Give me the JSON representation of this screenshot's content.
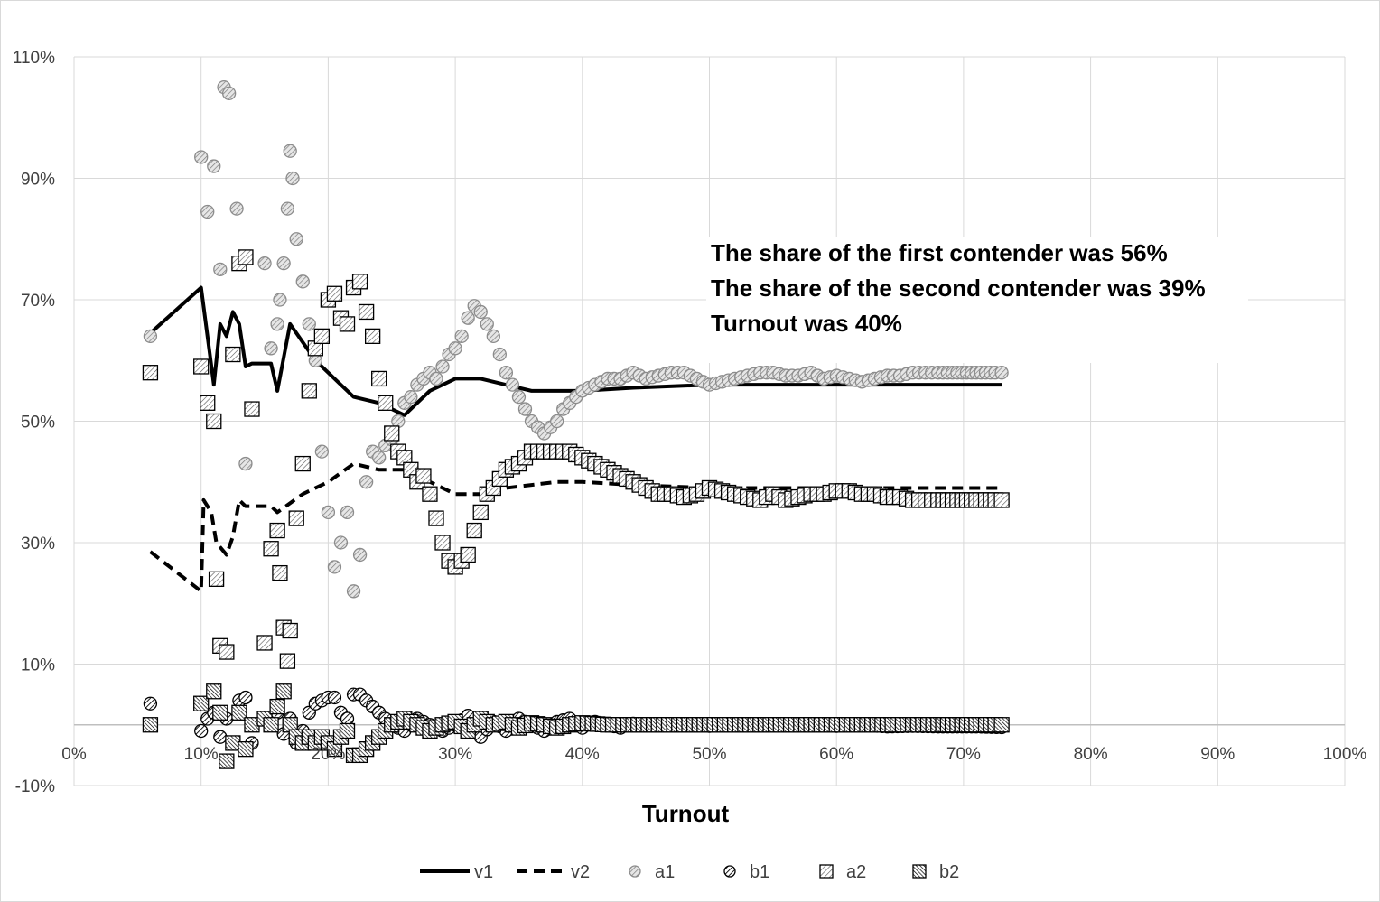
{
  "chart_data": {
    "type": "scatter",
    "title": "",
    "xlabel": "Turnout",
    "ylabel": "",
    "xlim": [
      0,
      100
    ],
    "ylim": [
      -10,
      110
    ],
    "x_ticks": [
      "0%",
      "10%",
      "20%",
      "30%",
      "40%",
      "50%",
      "60%",
      "70%",
      "80%",
      "90%",
      "100%"
    ],
    "y_ticks": [
      "-10%",
      "10%",
      "30%",
      "50%",
      "70%",
      "90%",
      "110%"
    ],
    "grid": true,
    "legend_position": "bottom",
    "legend": [
      "v1",
      "v2",
      "a1",
      "b1",
      "a2",
      "b2"
    ],
    "annotations": [
      "The share of the first contender was 56%",
      "The share of the second contender was 39%",
      "Turnout was 40%"
    ],
    "series": [
      {
        "name": "v1",
        "style": "solid-line",
        "x": [
          6,
          10,
          11,
          11.5,
          12,
          12.5,
          13,
          13.5,
          14,
          15.5,
          16,
          17,
          18,
          19,
          20,
          22,
          24,
          25,
          26,
          27,
          28,
          29,
          30,
          32,
          34,
          36,
          38,
          40,
          44,
          50,
          56,
          62,
          68,
          73
        ],
        "y": [
          64.5,
          72,
          56,
          66,
          64,
          68,
          66,
          59,
          59.5,
          59.5,
          55,
          66,
          63,
          60,
          58,
          54,
          53,
          52,
          51,
          53,
          55,
          56,
          57,
          57,
          56,
          55,
          55,
          55,
          55.5,
          56,
          56,
          56,
          56,
          56
        ]
      },
      {
        "name": "v2",
        "style": "dashed-line",
        "x": [
          6,
          10,
          10.2,
          10.8,
          11.2,
          12,
          12.5,
          13,
          13.5,
          15.5,
          16,
          18,
          20,
          22,
          24,
          26,
          28,
          30,
          32,
          34,
          36,
          38,
          40,
          44,
          50,
          56,
          62,
          68,
          73
        ],
        "y": [
          28.5,
          22,
          37,
          35,
          30,
          28,
          31,
          37,
          36,
          36,
          35,
          38,
          40,
          43,
          42,
          42,
          40,
          38,
          38,
          39,
          39.5,
          40,
          40,
          39.5,
          39,
          39,
          39,
          39,
          39
        ]
      },
      {
        "name": "a1",
        "style": "circle-light-hatch",
        "x": [
          6,
          10,
          10.5,
          11,
          11.5,
          11.8,
          12.2,
          12.8,
          13.5,
          15,
          15.5,
          16,
          16.2,
          16.5,
          16.8,
          17,
          17.2,
          17.5,
          18,
          18.5,
          19,
          19.5,
          20,
          20.5,
          21,
          21.5,
          22,
          22.5,
          23,
          23.5,
          24,
          24.5,
          25,
          25.5,
          26,
          26.5,
          27,
          27.5,
          28,
          28.5,
          29,
          29.5,
          30,
          30.5,
          31,
          31.5,
          32,
          32.5,
          33,
          33.5,
          34,
          34.5,
          35,
          35.5,
          36,
          36.5,
          37,
          37.5,
          38,
          38.5,
          39,
          39.5,
          40,
          41,
          42,
          43,
          44,
          45,
          46,
          47,
          48,
          49,
          50,
          51,
          52,
          53,
          54,
          55,
          56,
          57,
          58,
          59,
          60,
          61,
          62,
          63,
          64,
          65,
          66,
          67,
          68,
          71,
          72.5,
          73
        ],
        "y": [
          64,
          93.5,
          84.5,
          92,
          75,
          105,
          104,
          85,
          43,
          76,
          62,
          66,
          70,
          76,
          85,
          94.5,
          90,
          80,
          73,
          66,
          60,
          45,
          35,
          26,
          30,
          35,
          22,
          28,
          40,
          45,
          44,
          46,
          47,
          50,
          53,
          54,
          56,
          57,
          58,
          57,
          59,
          61,
          62,
          64,
          67,
          69,
          68,
          66,
          64,
          61,
          58,
          56,
          54,
          52,
          50,
          49,
          48,
          49,
          50,
          52,
          53,
          54,
          55,
          56,
          57,
          57,
          58,
          57,
          57.5,
          58,
          58,
          57,
          56,
          56.5,
          57,
          57.5,
          58,
          58,
          57.5,
          57.5,
          58,
          57,
          57.5,
          57,
          56.5,
          57,
          57.5,
          57.5,
          58,
          58,
          58,
          58,
          58,
          58
        ]
      },
      {
        "name": "b1",
        "style": "circle-dark-hatch",
        "x": [
          6,
          10,
          10.5,
          11,
          11.5,
          12,
          12.5,
          13,
          13.5,
          14,
          15,
          16,
          16.5,
          17,
          17.5,
          18,
          18.5,
          19,
          19.5,
          20,
          20.5,
          21,
          21.5,
          22,
          22.5,
          23,
          23.5,
          24,
          25,
          26,
          27,
          28,
          29,
          30,
          31,
          32,
          33,
          34,
          35,
          36,
          37,
          38,
          39,
          40,
          41,
          42,
          43,
          44,
          46,
          48,
          50,
          52,
          54,
          56,
          58,
          60,
          62,
          64,
          66,
          68,
          71,
          73
        ],
        "y": [
          3.5,
          -1,
          1,
          2,
          -2,
          1,
          -3,
          4,
          4.5,
          -3,
          1,
          2,
          -1.5,
          1,
          -3,
          -1,
          2,
          3.5,
          4,
          4.5,
          4.5,
          2,
          1,
          5,
          5,
          4,
          3,
          2,
          0,
          -1,
          1,
          0,
          -1,
          0,
          1.5,
          -2,
          0.5,
          -1,
          1,
          0,
          -1,
          0.5,
          1,
          -0.5,
          0.5,
          0,
          -0.5,
          0.2,
          0,
          0.1,
          -0.2,
          0.1,
          0,
          -0.1,
          0,
          -0.2,
          0,
          -0.3,
          -0.2,
          -0.3,
          -0.3,
          -0.4
        ]
      },
      {
        "name": "a2",
        "style": "square-light-hatch",
        "x": [
          6,
          10,
          10.5,
          11,
          11.2,
          11.5,
          12,
          12.5,
          13,
          13.5,
          14,
          15,
          15.5,
          16,
          16.2,
          16.5,
          16.8,
          17,
          17.5,
          18,
          18.5,
          19,
          19.5,
          20,
          20.5,
          21,
          21.5,
          22,
          22.5,
          23,
          23.5,
          24,
          24.5,
          25,
          25.5,
          26,
          26.5,
          27,
          27.5,
          28,
          28.5,
          29,
          29.5,
          30,
          30.5,
          31,
          31.5,
          32,
          32.5,
          33,
          34,
          35,
          36,
          37,
          38,
          39,
          40,
          41,
          42,
          43,
          44,
          45,
          46,
          47,
          48,
          49,
          50,
          51,
          52,
          53,
          54,
          55,
          56,
          57,
          58,
          59,
          60,
          61,
          62,
          63,
          64,
          65,
          66,
          67,
          68,
          71,
          72.5,
          73
        ],
        "y": [
          58,
          59,
          53,
          50,
          24,
          13,
          12,
          61,
          76,
          77,
          52,
          13.5,
          29,
          32,
          25,
          16,
          10.5,
          15.5,
          34,
          43,
          55,
          62,
          64,
          70,
          71,
          67,
          66,
          72,
          73,
          68,
          64,
          57,
          53,
          48,
          45,
          44,
          42,
          40,
          41,
          38,
          34,
          30,
          27,
          26,
          27,
          28,
          32,
          35,
          38,
          39,
          42,
          43,
          45,
          45,
          45,
          45,
          44,
          43,
          42,
          41,
          40,
          39,
          38,
          38,
          37.5,
          38,
          39,
          38.5,
          38,
          37.5,
          37,
          38,
          37,
          37.5,
          38,
          38,
          38.5,
          38.5,
          38,
          38,
          37.5,
          37.5,
          37,
          37,
          37,
          37,
          37,
          37
        ]
      },
      {
        "name": "b2",
        "style": "square-dark-hatch",
        "x": [
          6,
          10,
          11,
          11.5,
          12,
          12.5,
          13,
          13.5,
          14,
          15,
          15.5,
          16,
          16.5,
          17,
          17.5,
          18,
          18.5,
          19,
          19.5,
          20,
          20.5,
          21,
          21.5,
          22,
          22.5,
          23,
          23.5,
          24,
          25,
          26,
          27,
          28,
          29,
          30,
          31,
          32,
          33,
          34,
          35,
          36,
          37,
          38,
          39,
          40,
          42,
          44,
          46,
          48,
          50,
          52,
          54,
          56,
          58,
          60,
          62,
          64,
          66,
          68,
          71,
          72.5,
          73
        ],
        "y": [
          0,
          3.5,
          5.5,
          2,
          -6,
          -3,
          2,
          -4,
          0,
          1,
          0,
          3,
          5.5,
          0,
          -2,
          -3,
          -2,
          -3,
          -2,
          -3,
          -4,
          -2,
          -1,
          -5,
          -5,
          -4,
          -3,
          -2,
          0,
          1,
          0,
          -1,
          0,
          0.5,
          -1,
          1,
          0,
          0.5,
          -0.5,
          0.3,
          0,
          -0.5,
          0,
          0.3,
          0,
          0,
          0,
          0,
          0,
          0,
          0,
          0,
          0,
          0,
          0,
          0,
          0,
          0,
          0,
          0,
          0
        ]
      }
    ]
  }
}
